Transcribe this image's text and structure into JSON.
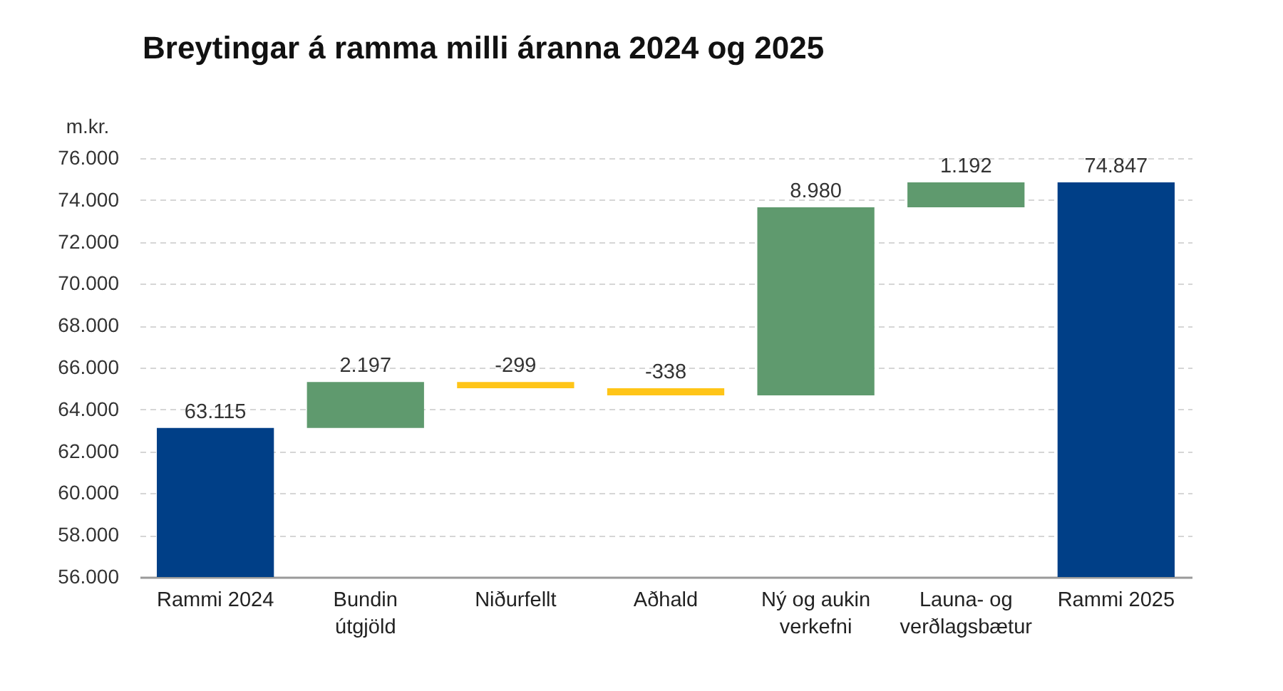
{
  "chart_data": {
    "type": "bar",
    "title": "Breytingar á ramma milli áranna 2024 og 2025",
    "ylabel": "m.kr.",
    "categories": [
      "Rammi 2024",
      "Bundin útgjöld",
      "Niðurfellt",
      "Aðhald",
      "Ný og aukin verkefni",
      "Launa- og verðlagsbætur",
      "Rammi 2025"
    ],
    "values": [
      63115,
      2197,
      -299,
      -338,
      8980,
      1192,
      74847
    ],
    "base": [
      null,
      63115,
      65312,
      65013,
      64675,
      73655,
      null
    ],
    "colors": [
      "#003f87",
      "#5f9a6e",
      "#ffc518",
      "#ffc518",
      "#5f9a6e",
      "#5f9a6e",
      "#003f87"
    ],
    "value_labels": [
      "63.115",
      "2.197",
      "-299",
      "-338",
      "8.980",
      "1.192",
      "74.847"
    ],
    "ylim": [
      56000,
      76000
    ],
    "yticks": [
      {
        "value": 56000,
        "label": "56.000"
      },
      {
        "value": 58000,
        "label": "58.000"
      },
      {
        "value": 60000,
        "label": "60.000"
      },
      {
        "value": 62000,
        "label": "62.000"
      },
      {
        "value": 64000,
        "label": "64.000"
      },
      {
        "value": 66000,
        "label": "66.000"
      },
      {
        "value": 68000,
        "label": "68.000"
      },
      {
        "value": 70000,
        "label": "70.000"
      },
      {
        "value": 72000,
        "label": "72.000"
      },
      {
        "value": 74000,
        "label": "74.000"
      },
      {
        "value": 76000,
        "label": "76.000"
      }
    ],
    "grid": "y"
  }
}
